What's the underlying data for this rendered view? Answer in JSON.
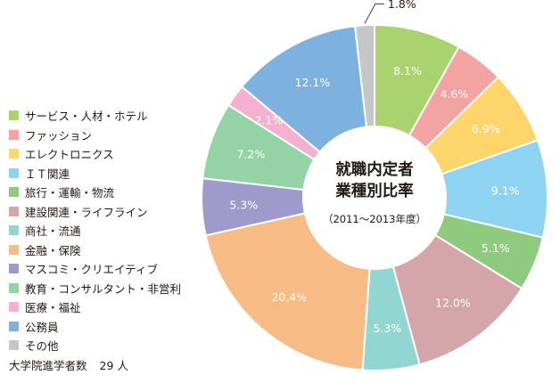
{
  "chart_data": {
    "type": "pie",
    "title_lines": [
      "就職内定者",
      "業種別比率"
    ],
    "subtitle": "（2011～2013年度）",
    "categories": [
      "サービス・人材・ホテル",
      "ファッション",
      "エレクトロニクス",
      "IT関連",
      "旅行・運輸・物流",
      "建設関連・ライフライン",
      "商社・流通",
      "金融・保険",
      "マスコミ・クリエイティブ",
      "教育・コンサルタント・非営利",
      "医療・福祉",
      "公務員",
      "その他"
    ],
    "values": [
      8.1,
      4.6,
      6.9,
      9.1,
      5.1,
      12.0,
      5.3,
      20.4,
      5.3,
      7.2,
      2.1,
      12.1,
      1.8
    ],
    "value_labels": [
      "8.1%",
      "4.6%",
      "6.9%",
      "9.1%",
      "5.1%",
      "12.0%",
      "5.3%",
      "20.4%",
      "5.3%",
      "7.2%",
      "2.1%",
      "12.1%",
      "1.8%"
    ],
    "colors": [
      "#a9d36e",
      "#f4a3a3",
      "#fdd56a",
      "#8fd3f2",
      "#8fcb7f",
      "#d4a6aa",
      "#91d6d2",
      "#f7bb85",
      "#9e9bcc",
      "#93d3a5",
      "#f6b0cf",
      "#7cb1e0",
      "#c6c6c6"
    ],
    "label_placement": [
      "inside",
      "inside",
      "inside",
      "inside",
      "inside",
      "inside",
      "inside",
      "inside",
      "inside",
      "inside",
      "inside",
      "inside",
      "outside"
    ],
    "legend_position": "left"
  },
  "legend_display": [
    "サービス・人材・ホテル",
    "ファッション",
    "エレクトロニクス",
    "ＩＴ関連",
    "旅行・運輸・物流",
    "建設関連・ライフライン",
    "商社・流通",
    "金融・保険",
    "マスコミ・クリエイティブ",
    "教育・コンサルタント・非営利",
    "医療・福祉",
    "公務員",
    "その他"
  ],
  "note": {
    "label": "大学院進学者数",
    "count": "29 人"
  }
}
